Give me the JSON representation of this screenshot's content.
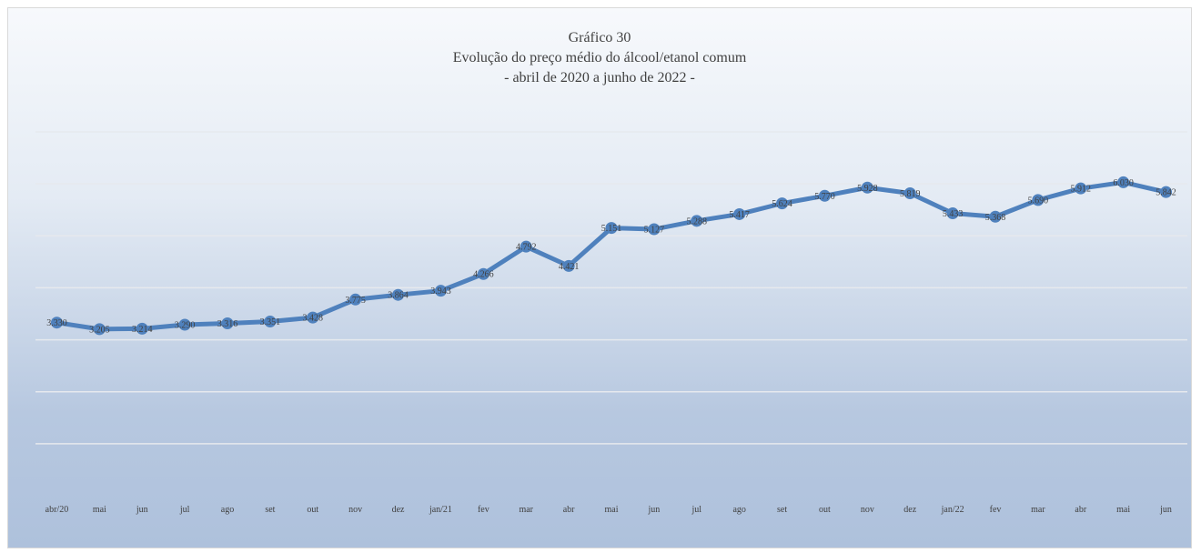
{
  "chart_data": {
    "type": "line",
    "title": "Gráfico 30",
    "subtitle": "Evolução do preço médio do álcool/etanol comum",
    "subtitle2": "- abril de 2020 a junho de 2022 -",
    "categories": [
      "abr/20",
      "mai",
      "jun",
      "jul",
      "ago",
      "set",
      "out",
      "nov",
      "dez",
      "jan/21",
      "fev",
      "mar",
      "abr",
      "mai",
      "jun",
      "jul",
      "ago",
      "set",
      "out",
      "nov",
      "dez",
      "jan/22",
      "fev",
      "mar",
      "abr",
      "mai",
      "jun"
    ],
    "values": [
      3.33,
      3.205,
      3.214,
      3.29,
      3.316,
      3.351,
      3.428,
      3.775,
      3.864,
      3.943,
      4.266,
      4.792,
      4.421,
      5.151,
      5.127,
      5.288,
      5.417,
      5.624,
      5.77,
      5.928,
      5.819,
      5.433,
      5.368,
      5.69,
      5.912,
      6.03,
      5.842
    ],
    "data_labels": [
      "3.330",
      "3.205",
      "3.214",
      "3.290",
      "3.316",
      "3.351",
      "3.428",
      "3.775",
      "3.864",
      "3.943",
      "4.266",
      "4.792",
      "4.421",
      "5.151",
      "5.127",
      "5.288",
      "5.417",
      "5.624",
      "5.770",
      "5.928",
      "5.819",
      "5.433",
      "5.368",
      "5.690",
      "5.912",
      "6.030",
      "5.842"
    ],
    "ylim": [
      0,
      7
    ],
    "grid": true,
    "legend": "none",
    "color": "#4f81bd"
  }
}
